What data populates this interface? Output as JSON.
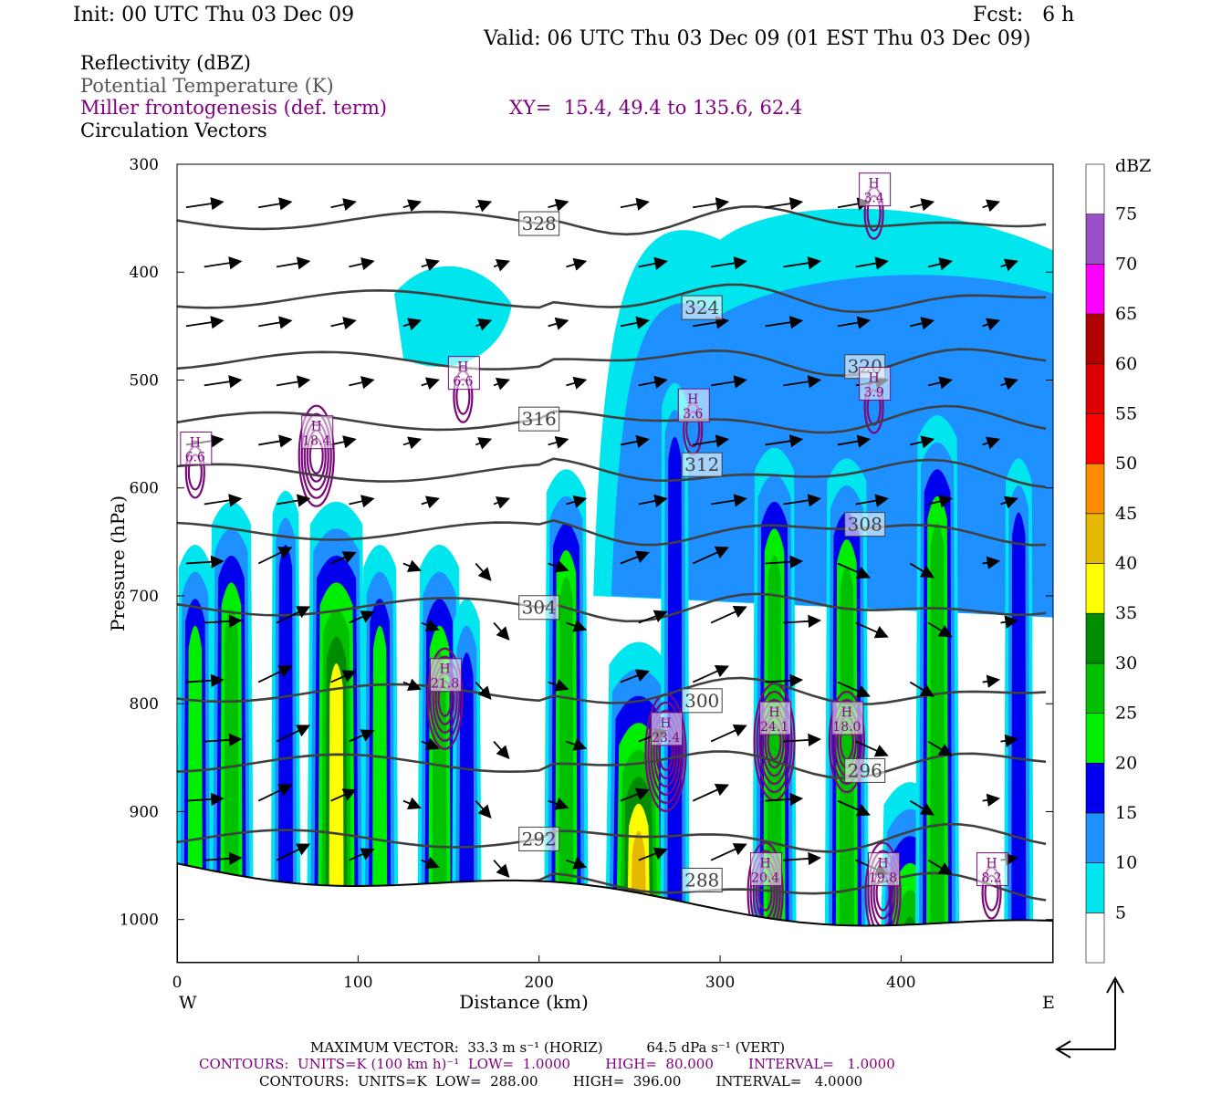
{
  "header": {
    "init": "Init: 00 UTC Thu 03 Dec 09",
    "fcst": "Fcst:   6 h",
    "valid": "Valid: 06 UTC Thu 03 Dec 09 (01 EST Thu 03 Dec 09)"
  },
  "fields": {
    "reflectivity": "Reflectivity (dBZ)",
    "theta": "Potential Temperature (K)",
    "fronto": "Miller frontogenesis (def. term)",
    "xy": "XY=  15.4, 49.4 to 135.6, 62.4",
    "vectors": "Circulation Vectors"
  },
  "colors": {
    "theta": "#404040",
    "fronto": "#7a0a7a",
    "vector": "#000000",
    "terrain": "#000000"
  },
  "chart_data": {
    "type": "heatmap",
    "xlabel": "Distance (km)",
    "ylabel": "Pressure (hPa)",
    "xlim": [
      0,
      484
    ],
    "ylim": [
      1040,
      300
    ],
    "x_ticks": [
      0,
      100,
      200,
      300,
      400
    ],
    "y_ticks": [
      300,
      400,
      500,
      600,
      700,
      800,
      900,
      1000
    ],
    "x_end_labels": {
      "left": "W",
      "right": "E"
    },
    "colorbar": {
      "label": "dBZ",
      "levels": [
        5,
        10,
        15,
        20,
        25,
        30,
        35,
        40,
        45,
        50,
        55,
        60,
        65,
        70,
        75
      ],
      "colors": [
        "#ffffff",
        "#00e5ee",
        "#1e90ff",
        "#0000ee",
        "#00ee00",
        "#00c000",
        "#008c00",
        "#ffff00",
        "#e6b800",
        "#ff8c00",
        "#ff0000",
        "#dd0000",
        "#b00000",
        "#ff00ff",
        "#9b4fc8",
        "#ffffff"
      ]
    },
    "reflectivity_columns": [
      {
        "x": 10,
        "dbz": 20,
        "top": 640
      },
      {
        "x": 30,
        "dbz": 25,
        "top": 600
      },
      {
        "x": 60,
        "dbz": 15,
        "top": 590
      },
      {
        "x": 88,
        "dbz": 35,
        "top": 600
      },
      {
        "x": 112,
        "dbz": 20,
        "top": 640
      },
      {
        "x": 145,
        "dbz": 25,
        "top": 640
      },
      {
        "x": 160,
        "dbz": 15,
        "top": 690
      },
      {
        "x": 215,
        "dbz": 25,
        "top": 570
      },
      {
        "x": 255,
        "dbz": 40,
        "top": 730
      },
      {
        "x": 275,
        "dbz": 15,
        "top": 490
      },
      {
        "x": 330,
        "dbz": 25,
        "top": 550
      },
      {
        "x": 370,
        "dbz": 25,
        "top": 560
      },
      {
        "x": 405,
        "dbz": 35,
        "top": 860
      },
      {
        "x": 420,
        "dbz": 25,
        "top": 520
      },
      {
        "x": 465,
        "dbz": 15,
        "top": 560
      }
    ],
    "theta_contours": [
      {
        "label": "328",
        "p": 352
      },
      {
        "label": "324",
        "p": 425
      },
      {
        "label": "320",
        "p": 482
      },
      {
        "label": "316",
        "p": 538
      },
      {
        "label": "312",
        "p": 586
      },
      {
        "label": "308",
        "p": 640
      },
      {
        "label": "304",
        "p": 710
      },
      {
        "label": "300",
        "p": 790
      },
      {
        "label": "296",
        "p": 855
      },
      {
        "label": "292",
        "p": 925
      },
      {
        "label": "288",
        "p": 970
      }
    ],
    "fronto_maxima": [
      {
        "x": 10,
        "p": 560,
        "label": "H",
        "value": "6.6"
      },
      {
        "x": 77,
        "p": 545,
        "label": "H",
        "value": "18.4"
      },
      {
        "x": 158,
        "p": 490,
        "label": "H",
        "value": "6.6"
      },
      {
        "x": 148,
        "p": 770,
        "label": "H",
        "value": "21.8"
      },
      {
        "x": 270,
        "p": 820,
        "label": "H",
        "value": "23.4"
      },
      {
        "x": 285,
        "p": 520,
        "label": "H",
        "value": "3.6"
      },
      {
        "x": 330,
        "p": 810,
        "label": "H",
        "value": "24.1"
      },
      {
        "x": 370,
        "p": 810,
        "label": "H",
        "value": "18.0"
      },
      {
        "x": 385,
        "p": 320,
        "label": "H",
        "value": "3.4"
      },
      {
        "x": 385,
        "p": 500,
        "label": "H",
        "value": "3.9"
      },
      {
        "x": 325,
        "p": 950,
        "label": "H",
        "value": "20.4"
      },
      {
        "x": 390,
        "p": 950,
        "label": "H",
        "value": "19.8"
      },
      {
        "x": 450,
        "p": 950,
        "label": "H",
        "value": "8.2"
      }
    ],
    "max_vector": "MAXIMUM VECTOR:  33.3 m s⁻¹ (HORIZ)          64.5 dPa s⁻¹ (VERT)",
    "contours_fronto": "CONTOURS:  UNITS=K (100 km h)⁻¹  LOW=  1.0000        HIGH=  80.000        INTERVAL=   1.0000",
    "contours_theta": "CONTOURS:  UNITS=K  LOW=  288.00        HIGH=  396.00        INTERVAL=   4.0000"
  }
}
